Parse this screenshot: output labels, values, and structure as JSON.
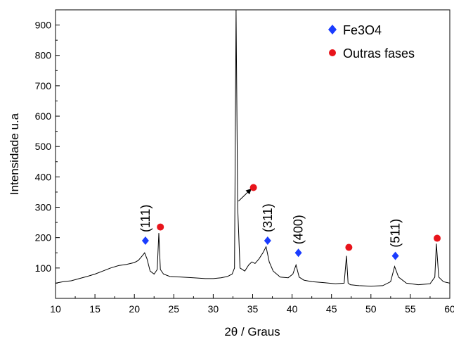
{
  "chart_data": {
    "type": "line",
    "xlabel": "2θ / Graus",
    "ylabel": "Intensidade u.a",
    "xlim": [
      10,
      60
    ],
    "ylim": [
      0,
      950
    ],
    "xticks": [
      10,
      15,
      20,
      25,
      30,
      35,
      40,
      45,
      50,
      55,
      60
    ],
    "yticks": [
      100,
      200,
      300,
      400,
      500,
      600,
      700,
      800,
      900
    ],
    "grid": false,
    "legend_position": "top-right",
    "legend": [
      {
        "label": "Fe3O4",
        "marker": "diamond",
        "color": "#1a3cff"
      },
      {
        "label": "Outras fases",
        "marker": "circle",
        "color": "#e8141b"
      }
    ],
    "series": [
      {
        "color": "#000000",
        "x": [
          10,
          11,
          12,
          13,
          14,
          15,
          16,
          17,
          18,
          19,
          20,
          20.5,
          21,
          21.3,
          21.6,
          22,
          22.5,
          22.9,
          23.1,
          23.3,
          23.7,
          24.5,
          26,
          27.5,
          29,
          30,
          31,
          31.8,
          32.4,
          32.7,
          32.9,
          33.1,
          33.4,
          34,
          34.5,
          34.9,
          35.3,
          35.8,
          36.3,
          36.7,
          37.1,
          37.6,
          38.5,
          39.5,
          40.1,
          40.5,
          40.9,
          41.5,
          42.5,
          44,
          45.5,
          46.6,
          46.9,
          47.1,
          47.4,
          48.5,
          50,
          51.5,
          52.5,
          53,
          53.5,
          54.5,
          56,
          57.5,
          58.1,
          58.3,
          58.6,
          59.2,
          60
        ],
        "y": [
          50,
          55,
          58,
          65,
          72,
          80,
          90,
          100,
          108,
          112,
          118,
          125,
          140,
          150,
          130,
          90,
          80,
          95,
          215,
          95,
          80,
          72,
          70,
          68,
          65,
          65,
          68,
          72,
          80,
          100,
          955,
          300,
          100,
          90,
          110,
          120,
          115,
          130,
          150,
          170,
          120,
          90,
          70,
          68,
          80,
          110,
          70,
          60,
          55,
          52,
          48,
          50,
          140,
          50,
          45,
          42,
          40,
          42,
          55,
          105,
          70,
          50,
          45,
          48,
          70,
          180,
          70,
          55,
          50
        ]
      }
    ],
    "markers": [
      {
        "phase": "Fe3O4",
        "shape": "diamond",
        "x": 21.4,
        "y": 190,
        "label": "(111)"
      },
      {
        "phase": "Fe3O4",
        "shape": "diamond",
        "x": 36.9,
        "y": 190,
        "label": "(311)"
      },
      {
        "phase": "Fe3O4",
        "shape": "diamond",
        "x": 40.8,
        "y": 150,
        "label": "(400)"
      },
      {
        "phase": "Fe3O4",
        "shape": "diamond",
        "x": 53.1,
        "y": 140,
        "label": "(511)"
      },
      {
        "phase": "Outras fases",
        "shape": "circle",
        "x": 23.3,
        "y": 235,
        "label": ""
      },
      {
        "phase": "Outras fases",
        "shape": "circle",
        "x": 35.1,
        "y": 365,
        "label": ""
      },
      {
        "phase": "Outras fases",
        "shape": "circle",
        "x": 47.2,
        "y": 168,
        "label": ""
      },
      {
        "phase": "Outras fases",
        "shape": "circle",
        "x": 58.4,
        "y": 198,
        "label": ""
      }
    ],
    "annotations": [
      {
        "type": "arrow",
        "from": [
          33.2,
          320
        ],
        "to": [
          34.8,
          360
        ]
      }
    ]
  }
}
